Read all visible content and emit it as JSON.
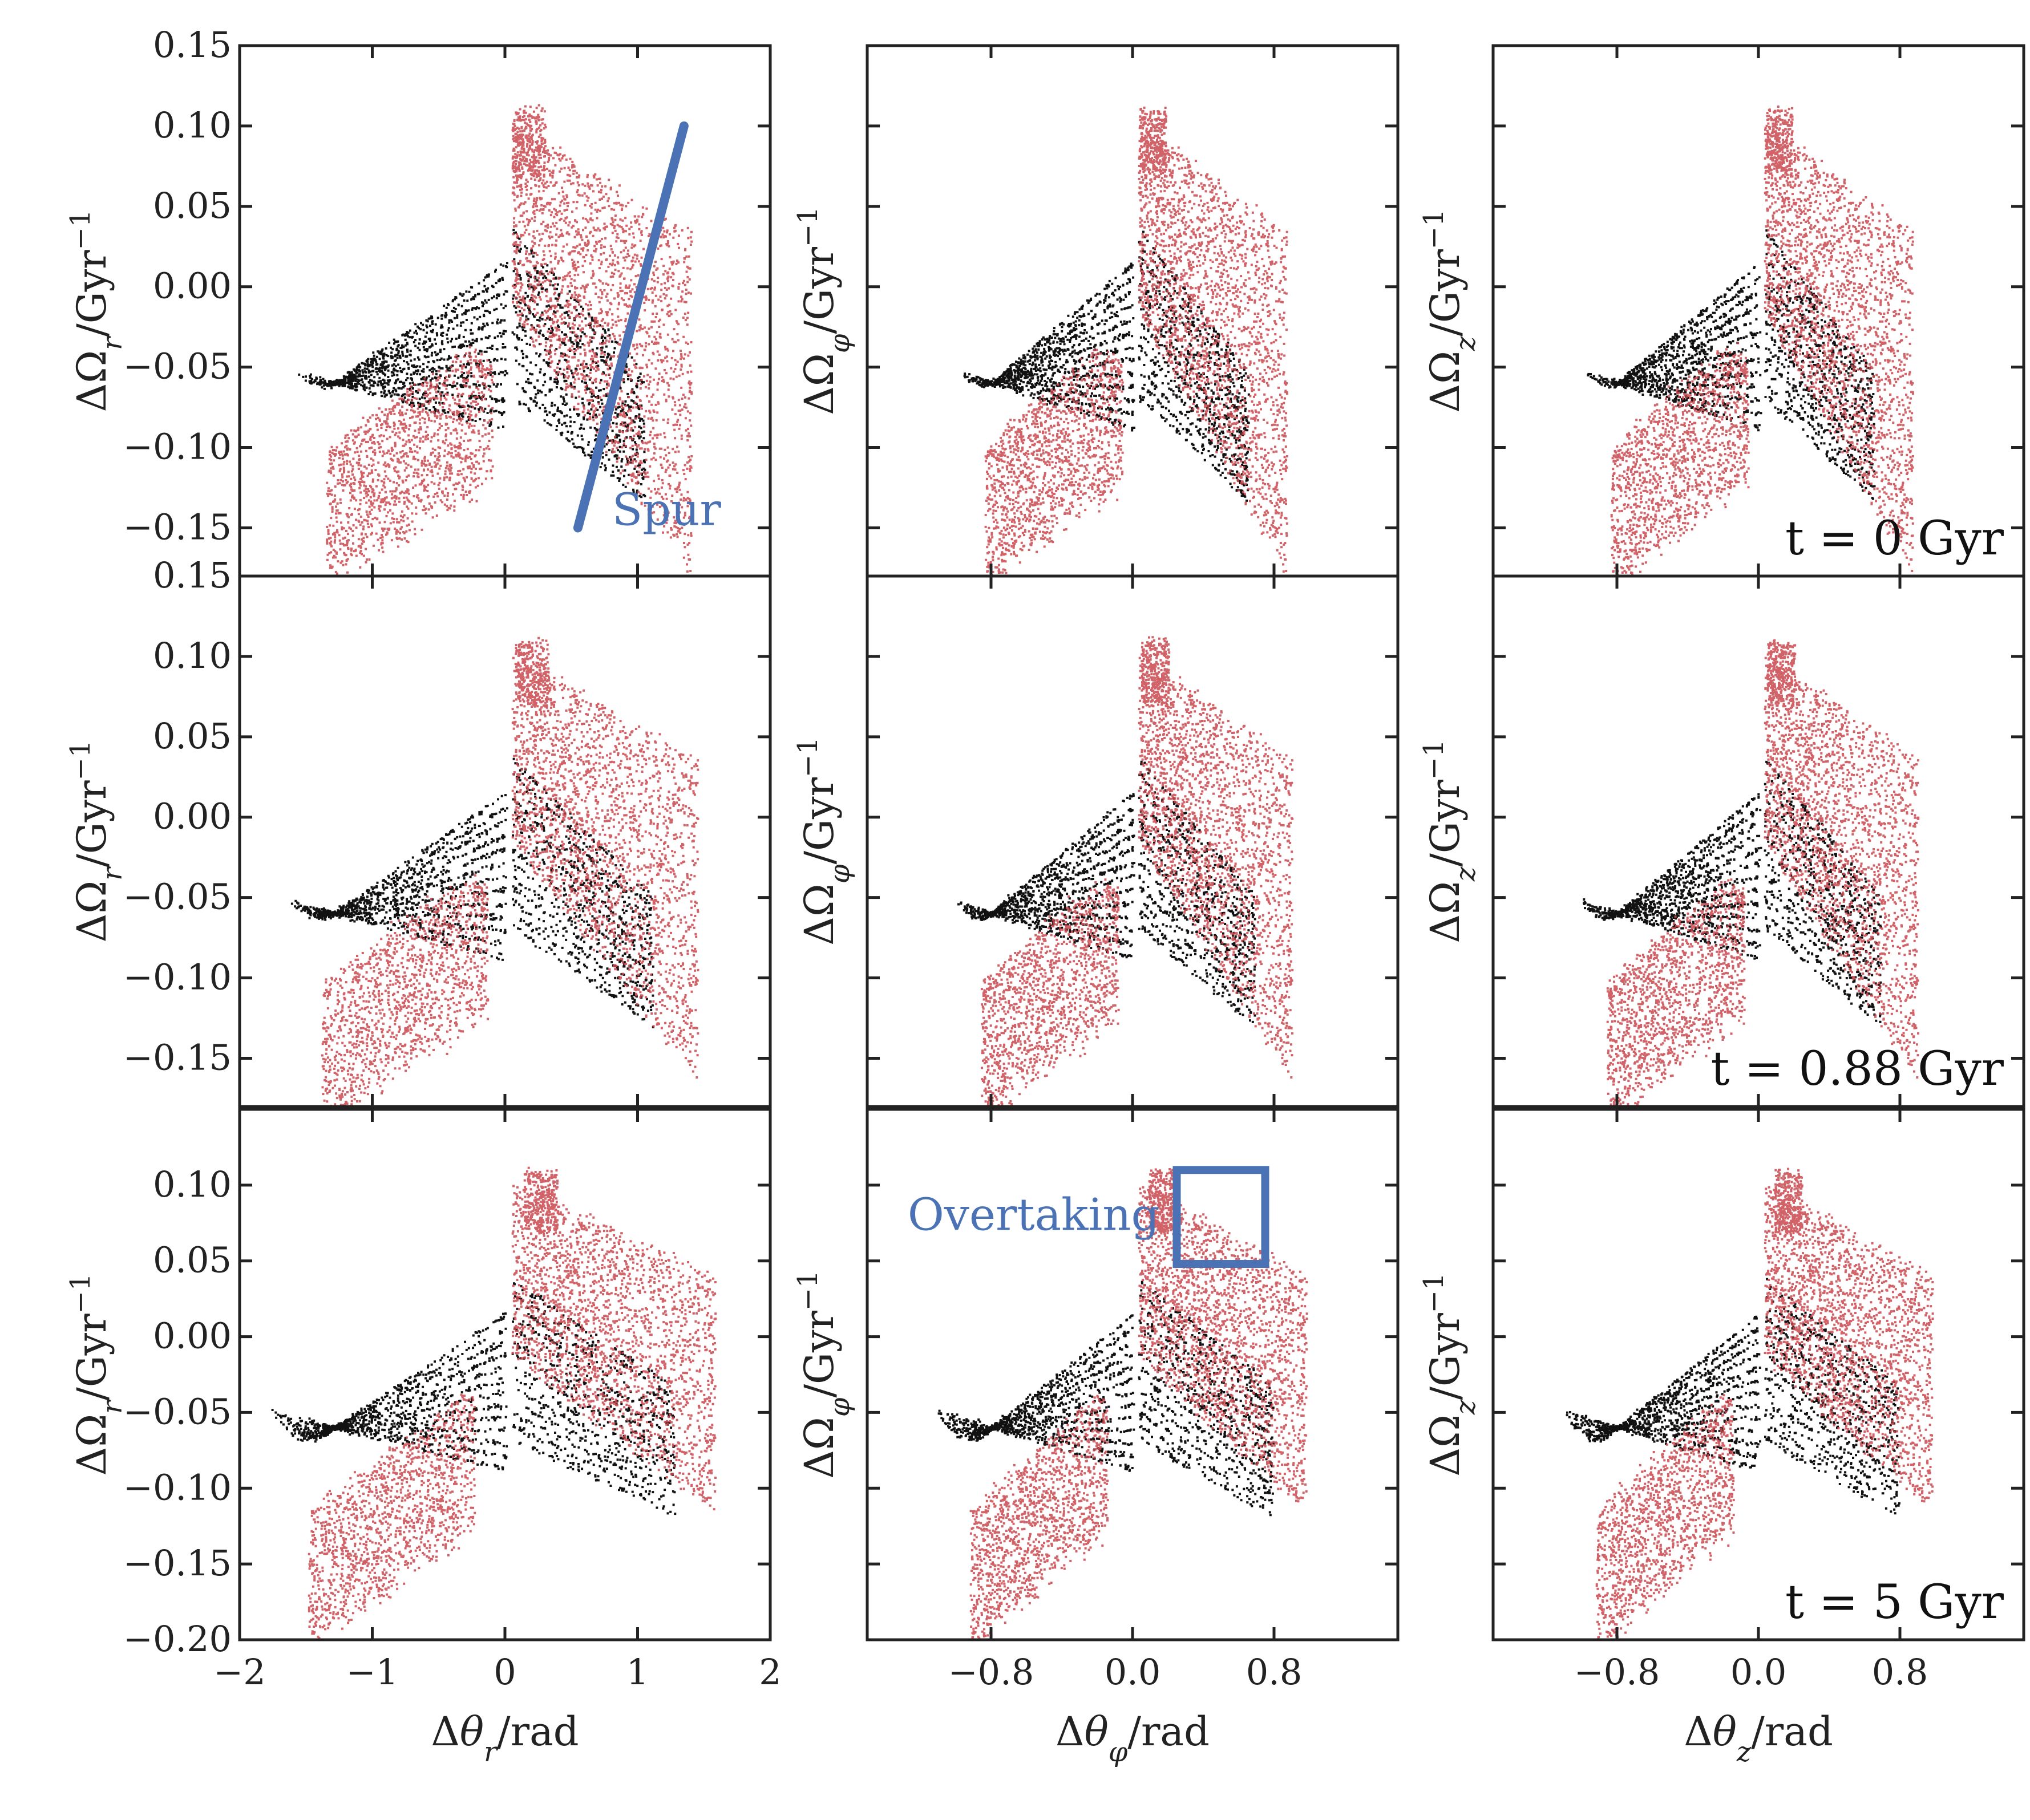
{
  "chart_data": {
    "type": "scatter",
    "title": "",
    "layout": "3x3 grid, shared y per row, shared x per column",
    "series": [
      {
        "name": "black particles",
        "color": "#111111"
      },
      {
        "name": "red particles",
        "color": "#c9464e"
      }
    ],
    "rows": [
      {
        "time_label": "t = 0 Gyr",
        "ylim": [
          -0.18,
          0.15
        ],
        "y_ticks": [
          -0.15,
          -0.1,
          -0.05,
          0.0,
          0.05,
          0.1,
          0.15
        ],
        "y_tick_labels": [
          "−0.15",
          "−0.10",
          "−0.05",
          "0.00",
          "0.05",
          "0.10",
          "0.15"
        ],
        "spread": 0.0
      },
      {
        "time_label": "t = 0.88 Gyr",
        "ylim": [
          -0.18,
          0.15
        ],
        "y_ticks": [
          -0.15,
          -0.1,
          -0.05,
          0.0,
          0.05,
          0.1,
          0.15
        ],
        "y_tick_labels": [
          "−0.15",
          "−0.10",
          "−0.05",
          "0.00",
          "0.05",
          "0.10",
          "0.15"
        ],
        "spread": 0.12
      },
      {
        "time_label": "t = 5 Gyr",
        "ylim": [
          -0.2,
          0.15
        ],
        "y_ticks": [
          -0.2,
          -0.15,
          -0.1,
          -0.05,
          0.0,
          0.05,
          0.1
        ],
        "y_tick_labels": [
          "−0.20",
          "−0.15",
          "−0.10",
          "−0.05",
          "0.00",
          "0.05",
          "0.10"
        ],
        "spread": 0.45
      }
    ],
    "columns": [
      {
        "xlabel": "Δθ_r/rad",
        "ylabel": "ΔΩ_r/Gyr⁻¹",
        "xlim": [
          -2.0,
          2.0
        ],
        "x_ticks": [
          -2,
          -1,
          0,
          1,
          2
        ],
        "x_tick_labels": [
          "−2",
          "−1",
          "0",
          "1",
          "2"
        ],
        "show_y_tick_labels": true
      },
      {
        "xlabel": "Δθ_φ/rad",
        "ylabel": "ΔΩ_φ/Gyr⁻¹",
        "xlim": [
          -1.5,
          1.5
        ],
        "x_ticks": [
          -0.8,
          0.0,
          0.8
        ],
        "x_tick_labels": [
          "−0.8",
          "0.0",
          "0.8"
        ],
        "show_y_tick_labels": false
      },
      {
        "xlabel": "Δθ_z/rad",
        "ylabel": "ΔΩ_z/Gyr⁻¹",
        "xlim": [
          -1.5,
          1.5
        ],
        "x_ticks": [
          -0.8,
          0.0,
          0.8
        ],
        "x_tick_labels": [
          "−0.8",
          "0.0",
          "0.8"
        ],
        "show_y_tick_labels": false
      }
    ],
    "annotations": [
      {
        "panel": "row1-col1",
        "text": "Spur",
        "color": "#4a72b5",
        "line_from": [
          0.55,
          -0.15
        ],
        "line_to": [
          1.35,
          0.1
        ]
      },
      {
        "panel": "row3-col2",
        "text": "Overtaking",
        "color": "#4a72b5",
        "box_x": [
          0.25,
          0.75
        ],
        "box_y": [
          0.048,
          0.11
        ]
      }
    ]
  }
}
